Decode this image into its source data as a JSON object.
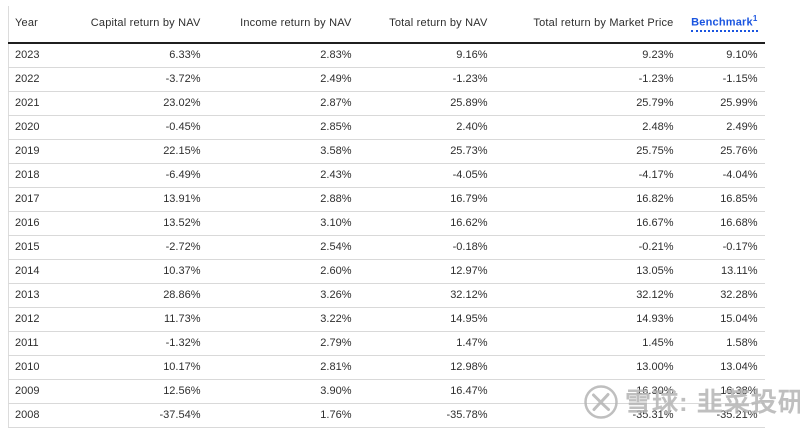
{
  "table": {
    "columns": [
      {
        "key": "year",
        "label": "Year",
        "align": "left"
      },
      {
        "key": "capital",
        "label": "Capital return by NAV",
        "align": "right"
      },
      {
        "key": "income",
        "label": "Income return by NAV",
        "align": "right"
      },
      {
        "key": "totalnav",
        "label": "Total return by NAV",
        "align": "right"
      },
      {
        "key": "market",
        "label": "Total return by Market Price",
        "align": "right"
      },
      {
        "key": "benchmark",
        "label": "Benchmark",
        "footnote_marker": "1",
        "align": "right",
        "is_link": true
      }
    ],
    "rows": [
      [
        "2023",
        "6.33%",
        "2.83%",
        "9.16%",
        "9.23%",
        "9.10%"
      ],
      [
        "2022",
        "-3.72%",
        "2.49%",
        "-1.23%",
        "-1.23%",
        "-1.15%"
      ],
      [
        "2021",
        "23.02%",
        "2.87%",
        "25.89%",
        "25.79%",
        "25.99%"
      ],
      [
        "2020",
        "-0.45%",
        "2.85%",
        "2.40%",
        "2.48%",
        "2.49%"
      ],
      [
        "2019",
        "22.15%",
        "3.58%",
        "25.73%",
        "25.75%",
        "25.76%"
      ],
      [
        "2018",
        "-6.49%",
        "2.43%",
        "-4.05%",
        "-4.17%",
        "-4.04%"
      ],
      [
        "2017",
        "13.91%",
        "2.88%",
        "16.79%",
        "16.82%",
        "16.85%"
      ],
      [
        "2016",
        "13.52%",
        "3.10%",
        "16.62%",
        "16.67%",
        "16.68%"
      ],
      [
        "2015",
        "-2.72%",
        "2.54%",
        "-0.18%",
        "-0.21%",
        "-0.17%"
      ],
      [
        "2014",
        "10.37%",
        "2.60%",
        "12.97%",
        "13.05%",
        "13.11%"
      ],
      [
        "2013",
        "28.86%",
        "3.26%",
        "32.12%",
        "32.12%",
        "32.28%"
      ],
      [
        "2012",
        "11.73%",
        "3.22%",
        "14.95%",
        "14.93%",
        "15.04%"
      ],
      [
        "2011",
        "-1.32%",
        "2.79%",
        "1.47%",
        "1.45%",
        "1.58%"
      ],
      [
        "2010",
        "10.17%",
        "2.81%",
        "12.98%",
        "13.00%",
        "13.04%"
      ],
      [
        "2009",
        "12.56%",
        "3.90%",
        "16.47%",
        "16.30%",
        "16.38%"
      ],
      [
        "2008",
        "-37.54%",
        "1.76%",
        "-35.78%",
        "-35.31%",
        "-35.21%"
      ]
    ]
  },
  "watermark": {
    "logo": "xueqiu-logo",
    "text": "雪球: 韭菜投研"
  },
  "colors": {
    "benchmark_link": "#1a55e0",
    "header_rule": "#1f1f1f",
    "row_divider": "#d9d9d9",
    "body_text": "#2e2e2e",
    "watermark_gray": "#b4b4b4"
  },
  "chart_data": {
    "type": "table",
    "columns": [
      "Year",
      "Capital return by NAV",
      "Income return by NAV",
      "Total return by NAV",
      "Total return by Market Price",
      "Benchmark"
    ],
    "rows": [
      [
        "2023",
        "6.33%",
        "2.83%",
        "9.16%",
        "9.23%",
        "9.10%"
      ],
      [
        "2022",
        "-3.72%",
        "2.49%",
        "-1.23%",
        "-1.23%",
        "-1.15%"
      ],
      [
        "2021",
        "23.02%",
        "2.87%",
        "25.89%",
        "25.79%",
        "25.99%"
      ],
      [
        "2020",
        "-0.45%",
        "2.85%",
        "2.40%",
        "2.48%",
        "2.49%"
      ],
      [
        "2019",
        "22.15%",
        "3.58%",
        "25.73%",
        "25.75%",
        "25.76%"
      ],
      [
        "2018",
        "-6.49%",
        "2.43%",
        "-4.05%",
        "-4.17%",
        "-4.04%"
      ],
      [
        "2017",
        "13.91%",
        "2.88%",
        "16.79%",
        "16.82%",
        "16.85%"
      ],
      [
        "2016",
        "13.52%",
        "3.10%",
        "16.62%",
        "16.67%",
        "16.68%"
      ],
      [
        "2015",
        "-2.72%",
        "2.54%",
        "-0.18%",
        "-0.21%",
        "-0.17%"
      ],
      [
        "2014",
        "10.37%",
        "2.60%",
        "12.97%",
        "13.05%",
        "13.11%"
      ],
      [
        "2013",
        "28.86%",
        "3.26%",
        "32.12%",
        "32.12%",
        "32.28%"
      ],
      [
        "2012",
        "11.73%",
        "3.22%",
        "14.95%",
        "14.93%",
        "15.04%"
      ],
      [
        "2011",
        "-1.32%",
        "2.79%",
        "1.47%",
        "1.45%",
        "1.58%"
      ],
      [
        "2010",
        "10.17%",
        "2.81%",
        "12.98%",
        "13.00%",
        "13.04%"
      ],
      [
        "2009",
        "12.56%",
        "3.90%",
        "16.47%",
        "16.30%",
        "16.38%"
      ],
      [
        "2008",
        "-37.54%",
        "1.76%",
        "-35.78%",
        "-35.31%",
        "-35.21%"
      ]
    ]
  }
}
